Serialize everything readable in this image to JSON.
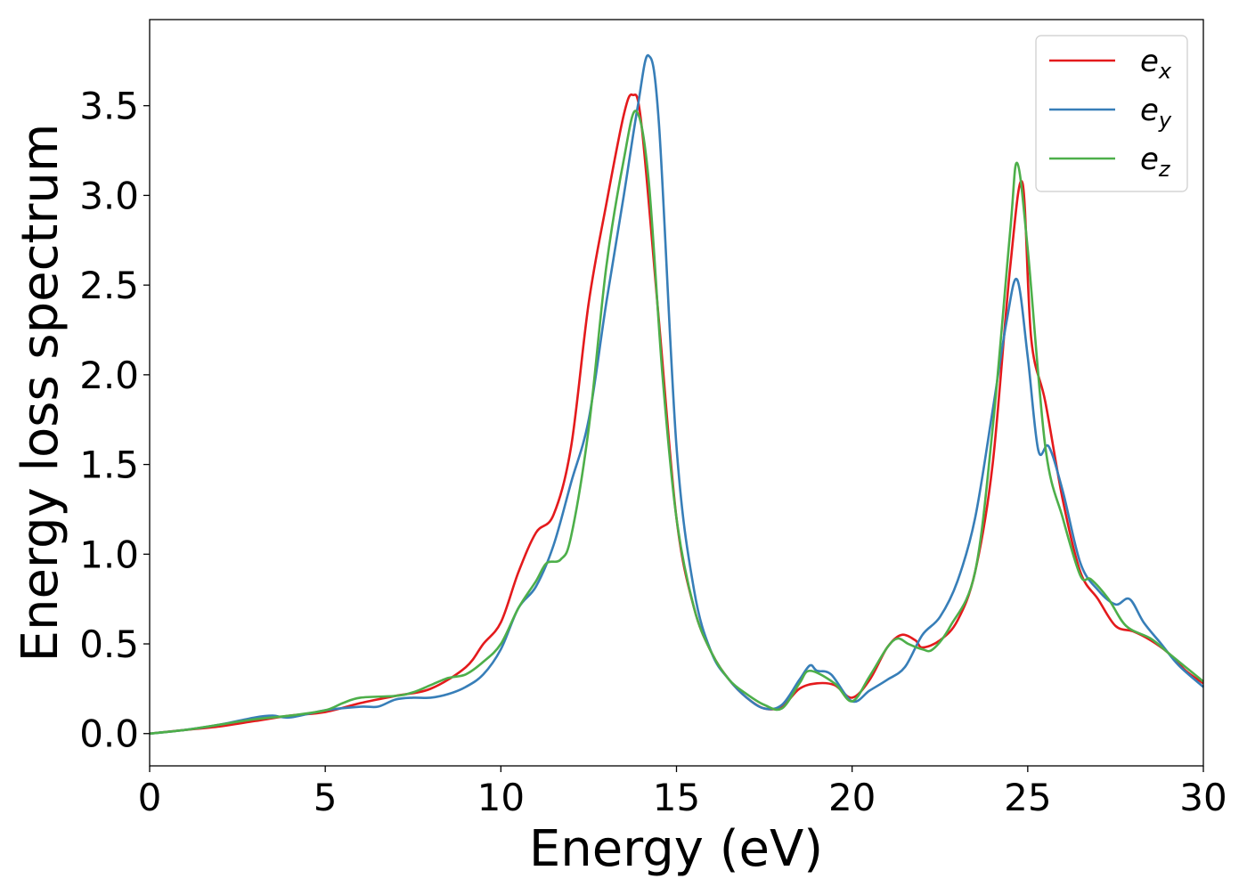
{
  "chart_data": {
    "type": "line",
    "title": "",
    "xlabel": "Energy (eV)",
    "ylabel": "Energy loss spectrum",
    "xlim": [
      0,
      30
    ],
    "ylim": [
      -0.18,
      3.98
    ],
    "x_ticks": [
      0,
      5,
      10,
      15,
      20,
      25,
      30
    ],
    "y_ticks": [
      0.0,
      0.5,
      1.0,
      1.5,
      2.0,
      2.5,
      3.0,
      3.5
    ],
    "y_tick_labels": [
      "0.0",
      "0.5",
      "1.0",
      "1.5",
      "2.0",
      "2.5",
      "3.0",
      "3.5"
    ],
    "grid": false,
    "legend_position": "top-right",
    "series": [
      {
        "name": "e_x",
        "label_main": "e",
        "label_sub": "x",
        "color": "#e41a1c",
        "points": [
          [
            0,
            0.0
          ],
          [
            1,
            0.02
          ],
          [
            2,
            0.04
          ],
          [
            3,
            0.07
          ],
          [
            4,
            0.1
          ],
          [
            5,
            0.12
          ],
          [
            6,
            0.17
          ],
          [
            7,
            0.21
          ],
          [
            8,
            0.25
          ],
          [
            9,
            0.37
          ],
          [
            9.5,
            0.5
          ],
          [
            10,
            0.62
          ],
          [
            10.5,
            0.9
          ],
          [
            11,
            1.12
          ],
          [
            11.5,
            1.22
          ],
          [
            12,
            1.6
          ],
          [
            12.5,
            2.4
          ],
          [
            13,
            2.95
          ],
          [
            13.5,
            3.45
          ],
          [
            13.75,
            3.56
          ],
          [
            14,
            3.4
          ],
          [
            14.5,
            2.3
          ],
          [
            15,
            1.2
          ],
          [
            15.5,
            0.7
          ],
          [
            16,
            0.45
          ],
          [
            16.5,
            0.3
          ],
          [
            17,
            0.2
          ],
          [
            17.5,
            0.14
          ],
          [
            18,
            0.15
          ],
          [
            18.5,
            0.25
          ],
          [
            19,
            0.28
          ],
          [
            19.5,
            0.27
          ],
          [
            20,
            0.2
          ],
          [
            20.5,
            0.3
          ],
          [
            21,
            0.48
          ],
          [
            21.4,
            0.55
          ],
          [
            21.8,
            0.52
          ],
          [
            22,
            0.48
          ],
          [
            22.5,
            0.52
          ],
          [
            23,
            0.63
          ],
          [
            23.5,
            0.9
          ],
          [
            24,
            1.5
          ],
          [
            24.5,
            2.6
          ],
          [
            24.85,
            3.07
          ],
          [
            25.1,
            2.2
          ],
          [
            25.5,
            1.85
          ],
          [
            26,
            1.3
          ],
          [
            26.5,
            0.9
          ],
          [
            27,
            0.75
          ],
          [
            27.5,
            0.6
          ],
          [
            28,
            0.57
          ],
          [
            28.5,
            0.52
          ],
          [
            29,
            0.45
          ],
          [
            29.5,
            0.35
          ],
          [
            30,
            0.28
          ]
        ]
      },
      {
        "name": "e_y",
        "label_main": "e",
        "label_sub": "y",
        "color": "#377eb8",
        "points": [
          [
            0,
            0.0
          ],
          [
            1,
            0.02
          ],
          [
            2,
            0.05
          ],
          [
            3,
            0.09
          ],
          [
            3.5,
            0.1
          ],
          [
            4,
            0.09
          ],
          [
            5,
            0.13
          ],
          [
            6,
            0.15
          ],
          [
            6.5,
            0.15
          ],
          [
            7,
            0.19
          ],
          [
            7.5,
            0.2
          ],
          [
            8,
            0.2
          ],
          [
            8.5,
            0.22
          ],
          [
            9,
            0.26
          ],
          [
            9.5,
            0.33
          ],
          [
            10,
            0.47
          ],
          [
            10.5,
            0.7
          ],
          [
            11,
            0.82
          ],
          [
            11.5,
            1.05
          ],
          [
            12,
            1.4
          ],
          [
            12.5,
            1.75
          ],
          [
            13,
            2.4
          ],
          [
            13.5,
            3.0
          ],
          [
            13.9,
            3.5
          ],
          [
            14.2,
            3.78
          ],
          [
            14.5,
            3.4
          ],
          [
            15,
            1.6
          ],
          [
            15.5,
            0.8
          ],
          [
            16,
            0.45
          ],
          [
            16.5,
            0.3
          ],
          [
            17,
            0.2
          ],
          [
            17.5,
            0.14
          ],
          [
            18,
            0.16
          ],
          [
            18.5,
            0.3
          ],
          [
            18.8,
            0.38
          ],
          [
            19,
            0.35
          ],
          [
            19.4,
            0.33
          ],
          [
            20,
            0.18
          ],
          [
            20.5,
            0.24
          ],
          [
            21,
            0.3
          ],
          [
            21.5,
            0.37
          ],
          [
            22,
            0.55
          ],
          [
            22.5,
            0.65
          ],
          [
            23,
            0.85
          ],
          [
            23.5,
            1.2
          ],
          [
            24,
            1.8
          ],
          [
            24.4,
            2.3
          ],
          [
            24.7,
            2.53
          ],
          [
            25,
            2.1
          ],
          [
            25.3,
            1.58
          ],
          [
            25.6,
            1.6
          ],
          [
            26,
            1.35
          ],
          [
            26.5,
            0.95
          ],
          [
            27,
            0.8
          ],
          [
            27.5,
            0.72
          ],
          [
            27.9,
            0.75
          ],
          [
            28.3,
            0.62
          ],
          [
            28.8,
            0.5
          ],
          [
            29.3,
            0.38
          ],
          [
            30,
            0.26
          ]
        ]
      },
      {
        "name": "e_z",
        "label_main": "e",
        "label_sub": "z",
        "color": "#4daf4a",
        "points": [
          [
            0,
            0.0
          ],
          [
            1,
            0.02
          ],
          [
            2,
            0.05
          ],
          [
            3,
            0.08
          ],
          [
            4,
            0.1
          ],
          [
            5,
            0.13
          ],
          [
            5.5,
            0.17
          ],
          [
            6,
            0.2
          ],
          [
            7,
            0.21
          ],
          [
            7.5,
            0.23
          ],
          [
            8,
            0.27
          ],
          [
            8.5,
            0.31
          ],
          [
            9,
            0.33
          ],
          [
            9.5,
            0.4
          ],
          [
            10,
            0.5
          ],
          [
            10.5,
            0.7
          ],
          [
            11,
            0.85
          ],
          [
            11.3,
            0.95
          ],
          [
            11.7,
            0.97
          ],
          [
            12,
            1.1
          ],
          [
            12.5,
            1.7
          ],
          [
            13,
            2.6
          ],
          [
            13.5,
            3.2
          ],
          [
            13.85,
            3.47
          ],
          [
            14.2,
            3.1
          ],
          [
            14.6,
            2.0
          ],
          [
            15,
            1.2
          ],
          [
            15.5,
            0.7
          ],
          [
            16,
            0.45
          ],
          [
            16.5,
            0.3
          ],
          [
            17,
            0.22
          ],
          [
            17.5,
            0.16
          ],
          [
            18,
            0.14
          ],
          [
            18.5,
            0.28
          ],
          [
            18.8,
            0.35
          ],
          [
            19.5,
            0.28
          ],
          [
            20,
            0.18
          ],
          [
            20.5,
            0.32
          ],
          [
            21,
            0.48
          ],
          [
            21.3,
            0.53
          ],
          [
            21.6,
            0.5
          ],
          [
            22,
            0.47
          ],
          [
            22.3,
            0.47
          ],
          [
            22.8,
            0.6
          ],
          [
            23.5,
            0.9
          ],
          [
            24,
            1.7
          ],
          [
            24.5,
            2.8
          ],
          [
            24.7,
            3.18
          ],
          [
            25,
            2.7
          ],
          [
            25.5,
            1.6
          ],
          [
            26,
            1.2
          ],
          [
            26.5,
            0.88
          ],
          [
            26.8,
            0.86
          ],
          [
            27.3,
            0.75
          ],
          [
            27.8,
            0.6
          ],
          [
            28.5,
            0.53
          ],
          [
            29,
            0.45
          ],
          [
            29.5,
            0.37
          ],
          [
            30,
            0.29
          ]
        ]
      }
    ]
  }
}
